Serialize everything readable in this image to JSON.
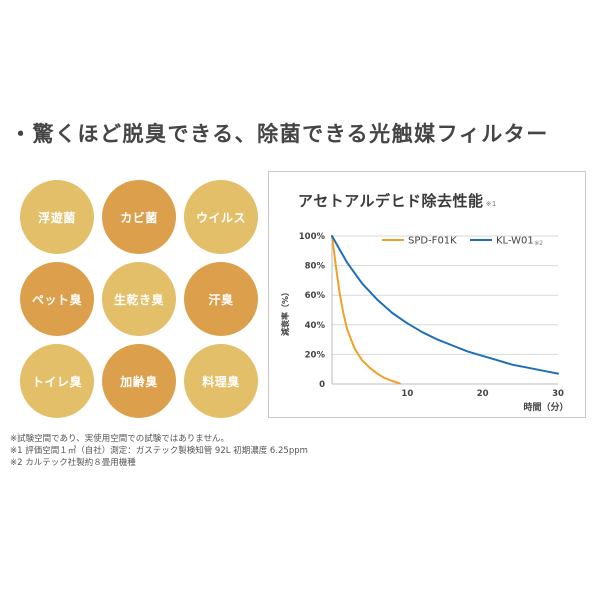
{
  "heading": "・驚くほど脱臭できる、除菌できる光触媒フィルター",
  "circles": [
    {
      "label": "浮遊菌",
      "color": "#e3bf6a"
    },
    {
      "label": "カビ菌",
      "color": "#dca04c"
    },
    {
      "label": "ウイルス",
      "color": "#e3bf6a"
    },
    {
      "label": "ペット臭",
      "color": "#dca04c"
    },
    {
      "label": "生乾き臭",
      "color": "#e3bf6a"
    },
    {
      "label": "汗臭",
      "color": "#dca04c"
    },
    {
      "label": "トイレ臭",
      "color": "#e3bf6a"
    },
    {
      "label": "加齢臭",
      "color": "#dca04c"
    },
    {
      "label": "料理臭",
      "color": "#e3bf6a"
    }
  ],
  "chart_title": {
    "text": "アセトアルデヒド除去性能",
    "note": "※1"
  },
  "chart_data": {
    "type": "line",
    "xlabel": "時間（分）",
    "ylabel": "減衰率（%）",
    "x_ticks": [
      "10",
      "20",
      "30"
    ],
    "y_ticks": [
      "0",
      "20%",
      "40%",
      "60%",
      "80%",
      "100%"
    ],
    "xlim": [
      0,
      30
    ],
    "ylim": [
      0,
      100
    ],
    "grid": "horizontal",
    "legend_position": "top-right",
    "series": [
      {
        "name": "SPD-F01K",
        "note": "",
        "color": "#f0a02a",
        "points": [
          [
            0,
            100
          ],
          [
            0.5,
            80
          ],
          [
            1,
            62
          ],
          [
            1.5,
            48
          ],
          [
            2,
            37
          ],
          [
            3,
            24
          ],
          [
            4,
            16
          ],
          [
            5,
            11
          ],
          [
            6,
            7
          ],
          [
            7,
            4
          ],
          [
            8,
            2
          ],
          [
            9,
            0.5
          ]
        ]
      },
      {
        "name": "KL-W01",
        "note": "※2",
        "color": "#1e6fb8",
        "points": [
          [
            0,
            100
          ],
          [
            2,
            82
          ],
          [
            4,
            68
          ],
          [
            6,
            57
          ],
          [
            8,
            48
          ],
          [
            10,
            41
          ],
          [
            12,
            35
          ],
          [
            14,
            30
          ],
          [
            16,
            26
          ],
          [
            18,
            22
          ],
          [
            20,
            19
          ],
          [
            22,
            16
          ],
          [
            24,
            13
          ],
          [
            26,
            11
          ],
          [
            28,
            9
          ],
          [
            30,
            7
          ]
        ]
      }
    ]
  },
  "footnotes": [
    "※試験空間であり、実使用空間での試験ではありません。",
    "※1 評価空間１㎥（自社）測定：ガステック製検知管 92L 初期濃度 6.25ppm",
    "※2 カルテック社製約８畳用機種"
  ]
}
